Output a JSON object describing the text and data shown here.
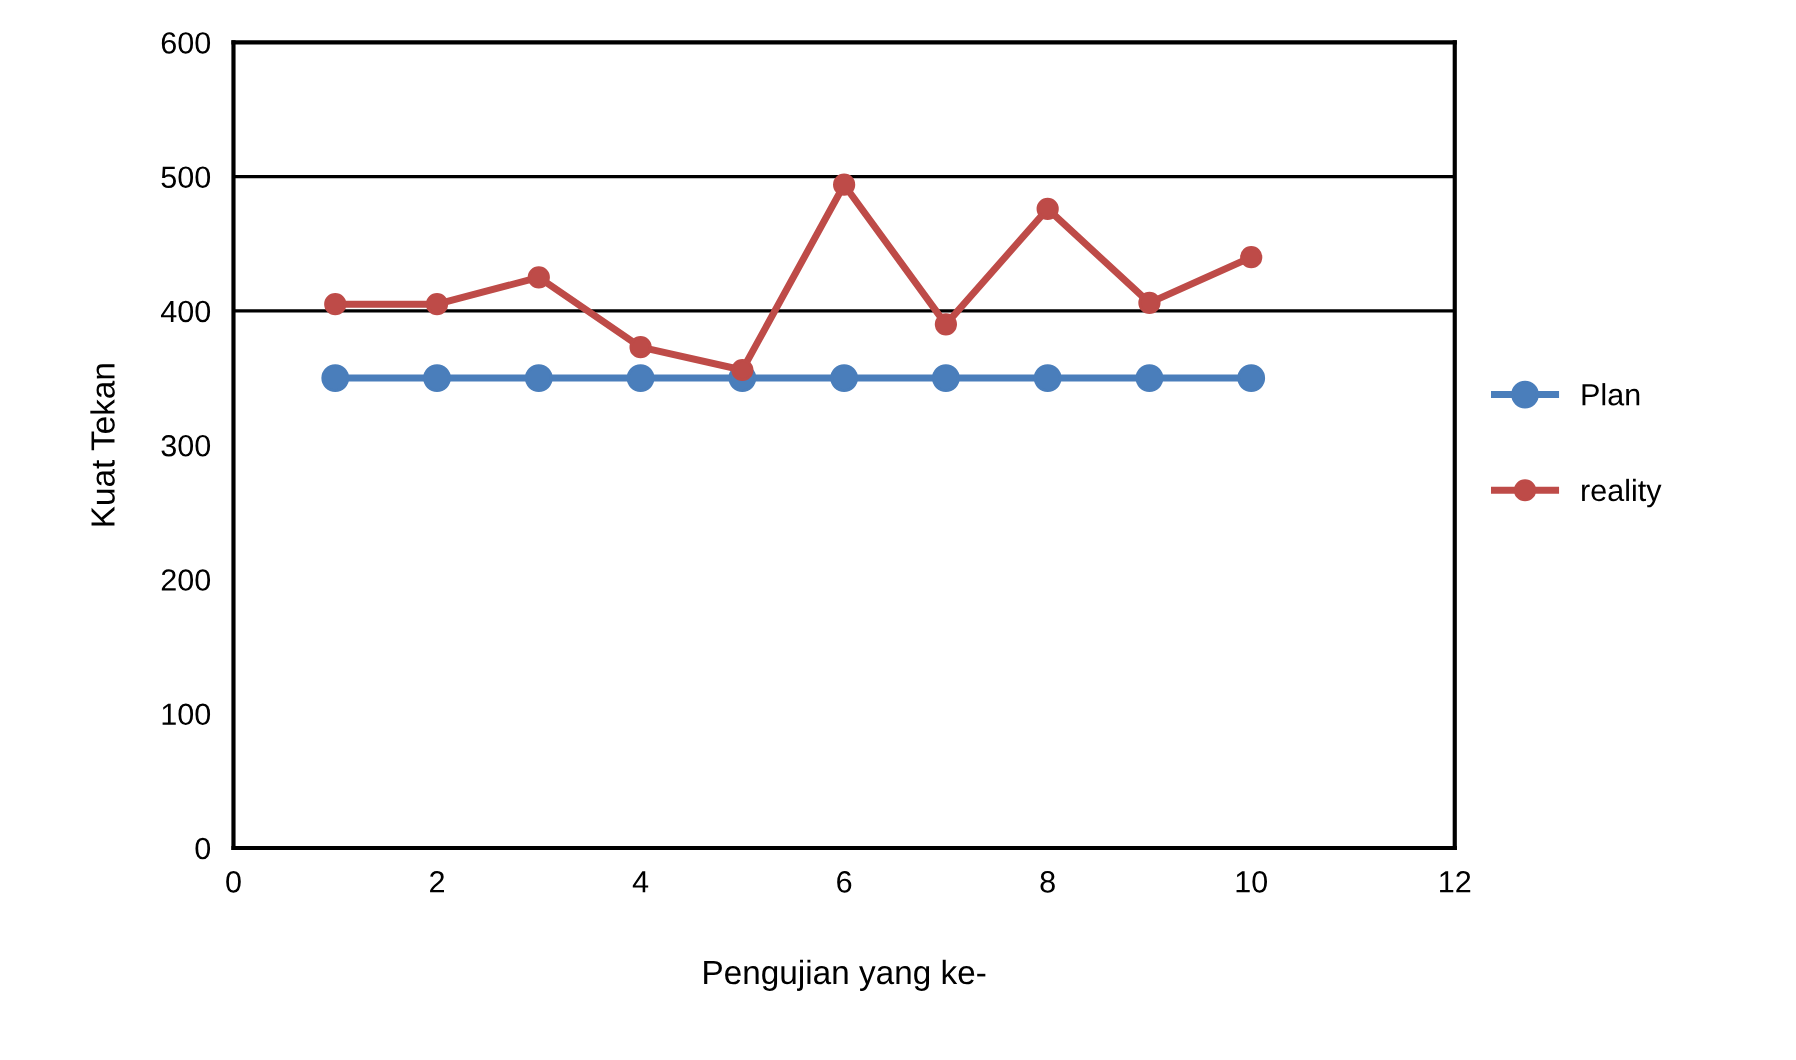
{
  "chart_data": {
    "type": "line",
    "xlabel": "Pengujian yang ke-",
    "ylabel": "Kuat Tekan",
    "x": [
      1,
      2,
      3,
      4,
      5,
      6,
      7,
      8,
      9,
      10
    ],
    "series": [
      {
        "name": "Plan",
        "color": "#4a7ebb",
        "values": [
          350,
          350,
          350,
          350,
          350,
          350,
          350,
          350,
          350,
          350
        ]
      },
      {
        "name": "reality",
        "color": "#be4b48",
        "values": [
          405,
          405,
          425,
          373,
          356,
          494,
          390,
          476,
          406,
          440
        ]
      }
    ],
    "xlim": [
      0,
      12
    ],
    "xticks": [
      0,
      2,
      4,
      6,
      8,
      10,
      12
    ],
    "ylim": [
      0,
      600
    ],
    "yticks": [
      0,
      100,
      200,
      300,
      400,
      500,
      600
    ],
    "ref_lines": [
      {
        "axis": "y",
        "value": 400,
        "color": "#000000"
      },
      {
        "axis": "y",
        "value": 500,
        "color": "#000000"
      }
    ],
    "grid": false,
    "legend": "right",
    "marker": "circle",
    "line_style": "solid"
  }
}
